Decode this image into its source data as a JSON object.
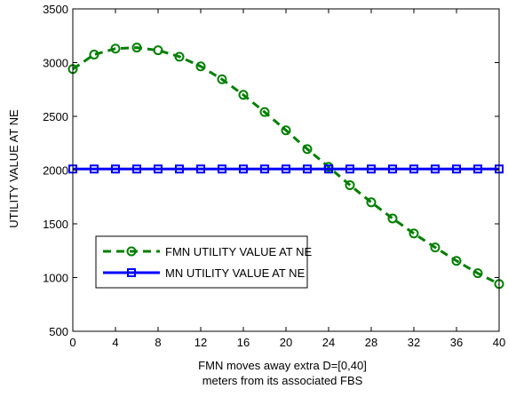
{
  "chart_data": {
    "type": "line",
    "title": "",
    "xlabel_lines": [
      "FMN moves away extra D=[0,40]",
      "meters from its associated FBS"
    ],
    "ylabel": "UTILITY VALUE AT NE",
    "xlim": [
      0,
      40
    ],
    "ylim": [
      500,
      3500
    ],
    "xticks": [
      0,
      4,
      8,
      12,
      16,
      20,
      24,
      28,
      32,
      36,
      40
    ],
    "yticks": [
      500,
      1000,
      1500,
      2000,
      2500,
      3000,
      3500
    ],
    "grid": false,
    "legend_position": "bottom-left",
    "x": [
      0,
      2,
      4,
      6,
      8,
      10,
      12,
      14,
      16,
      18,
      20,
      22,
      24,
      26,
      28,
      30,
      32,
      34,
      36,
      38,
      40
    ],
    "series": [
      {
        "name": "FMN UTILITY VALUE AT NE",
        "color": "#007f00",
        "line_style": "dashed",
        "marker": "circle",
        "values": [
          2940,
          3075,
          3130,
          3140,
          3115,
          3055,
          2965,
          2845,
          2700,
          2540,
          2370,
          2195,
          2030,
          1860,
          1700,
          1550,
          1410,
          1280,
          1155,
          1040,
          940
        ]
      },
      {
        "name": "MN UTILITY VALUE AT NE",
        "color": "#0000ff",
        "line_style": "solid",
        "marker": "square",
        "values": [
          2010,
          2010,
          2010,
          2010,
          2010,
          2010,
          2010,
          2010,
          2010,
          2010,
          2010,
          2010,
          2010,
          2010,
          2010,
          2010,
          2010,
          2010,
          2010,
          2010,
          2010
        ]
      }
    ]
  }
}
